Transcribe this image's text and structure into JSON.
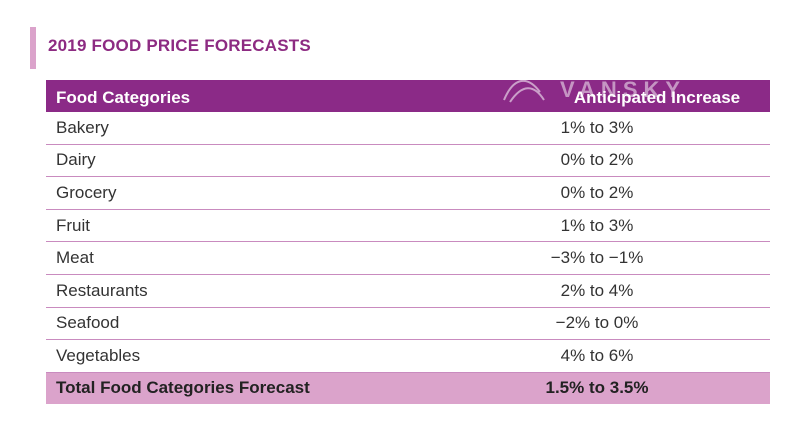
{
  "title": "2019 FOOD PRICE FORECASTS",
  "table": {
    "headers": [
      "Food Categories",
      "Anticipated Increase"
    ],
    "rows": [
      {
        "category": "Bakery",
        "forecast": "1% to 3%"
      },
      {
        "category": "Dairy",
        "forecast": "0% to 2%"
      },
      {
        "category": "Grocery",
        "forecast": "0% to 2%"
      },
      {
        "category": "Fruit",
        "forecast": "1% to 3%"
      },
      {
        "category": "Meat",
        "forecast": "−3% to −1%"
      },
      {
        "category": "Restaurants",
        "forecast": "2% to 4%"
      },
      {
        "category": "Seafood",
        "forecast": "−2% to 0%"
      },
      {
        "category": "Vegetables",
        "forecast": "4% to 6%"
      }
    ],
    "total": {
      "category": "Total Food Categories Forecast",
      "forecast": "1.5% to 3.5%"
    }
  },
  "watermark_text": "VANSKY",
  "colors": {
    "accent": "#8b2a87",
    "accent_light": "#dba3cb",
    "title": "#8d2b82"
  }
}
